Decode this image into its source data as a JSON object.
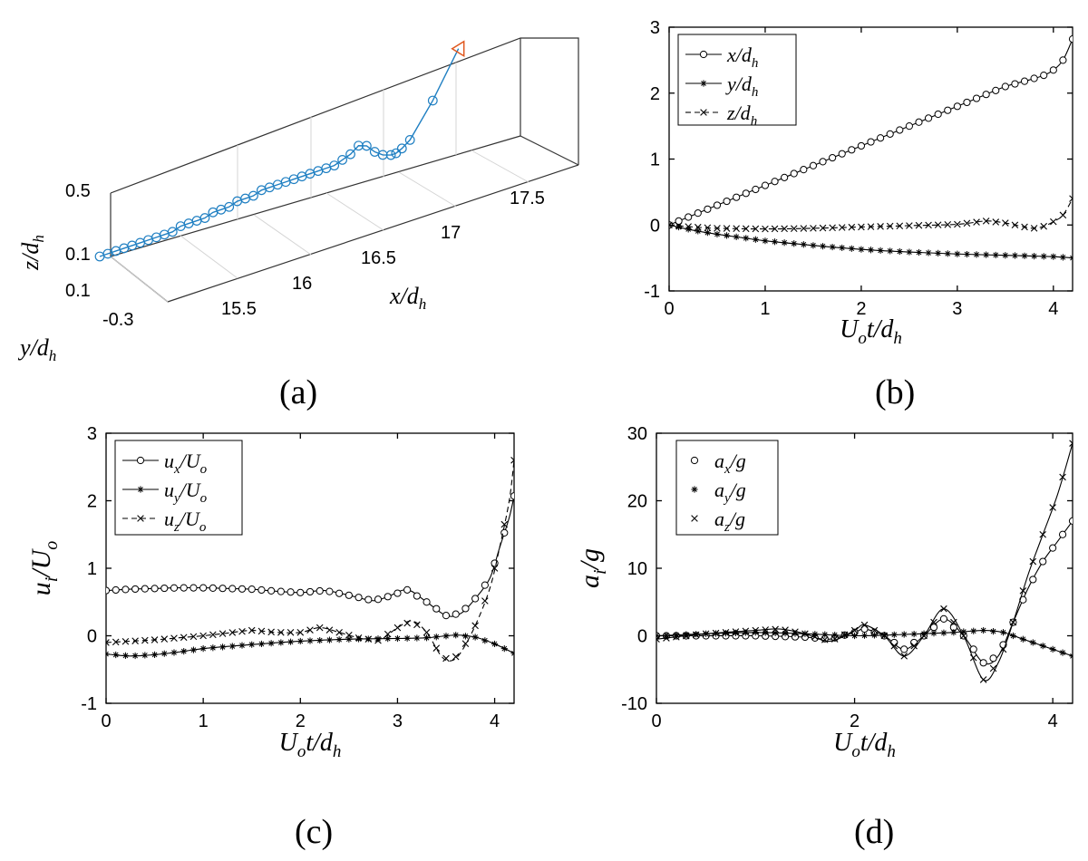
{
  "chart_data": [
    {
      "id": "a",
      "type": "line3d",
      "panel_label": "(a)",
      "xlabel": "x/d_h",
      "ylabel": "y/d_h",
      "zlabel": "z/d_h",
      "x_ticks": [
        "15.5",
        "16",
        "16.5",
        "17",
        "17.5"
      ],
      "y_ticks": [
        "0.1",
        "-0.3"
      ],
      "z_ticks": [
        "0.5",
        "0.1"
      ],
      "series_color": "#1f7fc2",
      "end_marker_color": "#e0581f",
      "trajectory": {
        "x": [
          15.32,
          15.38,
          15.44,
          15.5,
          15.56,
          15.62,
          15.68,
          15.74,
          15.8,
          15.86,
          15.92,
          15.98,
          16.04,
          16.1,
          16.16,
          16.22,
          16.28,
          16.34,
          16.4,
          16.46,
          16.52,
          16.58,
          16.64,
          16.7,
          16.76,
          16.82,
          16.88,
          16.94,
          17.0,
          17.06,
          17.12,
          17.18,
          17.24,
          17.3,
          17.36,
          17.42,
          17.48,
          17.52,
          17.56,
          17.62,
          17.78,
          17.96
        ],
        "y": [
          0.1,
          0.09,
          0.08,
          0.07,
          0.06,
          0.05,
          0.04,
          0.03,
          0.02,
          0.01,
          0.0,
          -0.01,
          -0.02,
          -0.03,
          -0.04,
          -0.05,
          -0.06,
          -0.07,
          -0.08,
          -0.09,
          -0.1,
          -0.11,
          -0.12,
          -0.13,
          -0.14,
          -0.15,
          -0.16,
          -0.17,
          -0.18,
          -0.19,
          -0.2,
          -0.21,
          -0.22,
          -0.23,
          -0.24,
          -0.25,
          -0.26,
          -0.27,
          -0.27,
          -0.28,
          -0.29,
          -0.3
        ],
        "z": [
          0.1,
          0.1,
          0.1,
          0.1,
          0.1,
          0.1,
          0.1,
          0.1,
          0.1,
          0.1,
          0.11,
          0.11,
          0.11,
          0.11,
          0.12,
          0.12,
          0.12,
          0.13,
          0.13,
          0.13,
          0.14,
          0.14,
          0.14,
          0.14,
          0.14,
          0.14,
          0.14,
          0.14,
          0.14,
          0.14,
          0.15,
          0.16,
          0.18,
          0.17,
          0.14,
          0.12,
          0.11,
          0.11,
          0.12,
          0.14,
          0.25,
          0.4
        ]
      }
    },
    {
      "id": "b",
      "type": "line",
      "panel_label": "(b)",
      "xlabel": "U_o t/d_h",
      "ylabel": "",
      "xlim": [
        0,
        4.2
      ],
      "ylim": [
        -1,
        3
      ],
      "x_ticks": [
        0,
        1,
        2,
        3,
        4
      ],
      "y_ticks": [
        -1,
        0,
        1,
        2,
        3
      ],
      "legend": {
        "position": "top-left"
      },
      "series": [
        {
          "name": "x/d_h",
          "marker": "o",
          "dash": "solid",
          "x": [
            0,
            0.25,
            0.5,
            0.75,
            1,
            1.25,
            1.5,
            1.75,
            2,
            2.25,
            2.5,
            2.75,
            3,
            3.25,
            3.5,
            3.75,
            3.9,
            4.0,
            4.1,
            4.2
          ],
          "y": [
            0,
            0.15,
            0.3,
            0.45,
            0.6,
            0.75,
            0.9,
            1.05,
            1.2,
            1.35,
            1.5,
            1.65,
            1.8,
            1.95,
            2.1,
            2.2,
            2.27,
            2.35,
            2.5,
            2.82
          ]
        },
        {
          "name": "y/d_h",
          "marker": "*",
          "dash": "solid",
          "x": [
            0,
            0.25,
            0.5,
            0.75,
            1,
            1.5,
            2,
            2.5,
            3,
            3.5,
            4,
            4.2
          ],
          "y": [
            0,
            -0.08,
            -0.14,
            -0.19,
            -0.24,
            -0.31,
            -0.37,
            -0.41,
            -0.44,
            -0.46,
            -0.48,
            -0.5
          ]
        },
        {
          "name": "z/d_h",
          "marker": "x",
          "dash": "dashed",
          "x": [
            0,
            0.25,
            0.5,
            1,
            1.5,
            2,
            2.5,
            3,
            3.3,
            3.5,
            3.7,
            3.8,
            3.9,
            4.0,
            4.1,
            4.2
          ],
          "y": [
            0,
            -0.03,
            -0.05,
            -0.06,
            -0.05,
            -0.03,
            -0.01,
            0.01,
            0.06,
            0.03,
            -0.03,
            -0.05,
            -0.02,
            0.05,
            0.15,
            0.4
          ]
        }
      ]
    },
    {
      "id": "c",
      "type": "line",
      "panel_label": "(c)",
      "xlabel": "U_o t/d_h",
      "ylabel": "u_i/U_o",
      "xlim": [
        0,
        4.2
      ],
      "ylim": [
        -1,
        3
      ],
      "x_ticks": [
        0,
        1,
        2,
        3,
        4
      ],
      "y_ticks": [
        -1,
        0,
        1,
        2,
        3
      ],
      "legend": {
        "position": "top-left"
      },
      "series": [
        {
          "name": "u_x/U_o",
          "marker": "o",
          "dash": "solid",
          "x": [
            0,
            0.25,
            0.5,
            0.75,
            1,
            1.25,
            1.5,
            1.75,
            2,
            2.25,
            2.5,
            2.75,
            2.9,
            3.1,
            3.3,
            3.5,
            3.65,
            3.8,
            3.95,
            4.05,
            4.15,
            4.2
          ],
          "y": [
            0.67,
            0.69,
            0.7,
            0.71,
            0.71,
            0.7,
            0.69,
            0.66,
            0.64,
            0.67,
            0.6,
            0.52,
            0.58,
            0.68,
            0.5,
            0.3,
            0.33,
            0.55,
            0.85,
            1.3,
            1.75,
            2.07
          ]
        },
        {
          "name": "u_y/U_o",
          "marker": "*",
          "dash": "solid",
          "x": [
            0,
            0.25,
            0.5,
            0.75,
            1,
            1.5,
            2,
            2.5,
            3,
            3.3,
            3.6,
            3.8,
            4.0,
            4.2
          ],
          "y": [
            -0.27,
            -0.3,
            -0.28,
            -0.24,
            -0.19,
            -0.13,
            -0.08,
            -0.05,
            -0.04,
            -0.03,
            0.01,
            -0.02,
            -0.12,
            -0.26
          ]
        },
        {
          "name": "u_z/U_o",
          "marker": "x",
          "dash": "dashed",
          "x": [
            0,
            0.25,
            0.5,
            0.75,
            1,
            1.25,
            1.5,
            1.75,
            2,
            2.2,
            2.4,
            2.6,
            2.8,
            3.0,
            3.15,
            3.3,
            3.45,
            3.55,
            3.65,
            3.8,
            3.95,
            4.05,
            4.15,
            4.2
          ],
          "y": [
            -0.1,
            -0.08,
            -0.06,
            -0.03,
            0.0,
            0.04,
            0.08,
            0.05,
            0.05,
            0.12,
            0.05,
            -0.03,
            -0.07,
            0.12,
            0.22,
            0.05,
            -0.3,
            -0.37,
            -0.25,
            0.15,
            0.7,
            1.3,
            2.0,
            2.6
          ]
        }
      ]
    },
    {
      "id": "d",
      "type": "line",
      "panel_label": "(d)",
      "xlabel": "U_o t/d_h",
      "ylabel": "a_i/g",
      "xlim": [
        0,
        4.2
      ],
      "ylim": [
        -10,
        30
      ],
      "x_ticks": [
        0,
        2,
        4
      ],
      "y_ticks": [
        -10,
        0,
        10,
        20,
        30
      ],
      "legend": {
        "position": "top-left"
      },
      "series": [
        {
          "name": "a_x/g",
          "marker": "o",
          "dash": "solid",
          "x": [
            0,
            0.5,
            1,
            1.5,
            1.75,
            2,
            2.1,
            2.3,
            2.5,
            2.7,
            2.9,
            3.1,
            3.3,
            3.45,
            3.6,
            3.75,
            3.9,
            4.05,
            4.2
          ],
          "y": [
            0,
            0,
            0,
            -0.2,
            -0.5,
            0.5,
            1.0,
            0,
            -2.0,
            0,
            2.5,
            0,
            -4.0,
            -3.0,
            2.0,
            7.0,
            11.0,
            14.0,
            17.0
          ]
        },
        {
          "name": "a_y/g",
          "marker": "*",
          "dash": "solid",
          "x": [
            0,
            0.5,
            1,
            1.5,
            2,
            2.5,
            3,
            3.3,
            3.5,
            3.7,
            3.9,
            4.2
          ],
          "y": [
            0,
            0.3,
            0.5,
            0.3,
            0,
            0.2,
            0.5,
            0.8,
            0.5,
            -0.5,
            -1.5,
            -3.0
          ]
        },
        {
          "name": "a_z/g",
          "marker": "x",
          "dash": "solid",
          "x": [
            0,
            0.5,
            1,
            1.25,
            1.5,
            1.75,
            2,
            2.1,
            2.3,
            2.5,
            2.7,
            2.9,
            3.1,
            3.3,
            3.45,
            3.6,
            3.75,
            3.9,
            4.05,
            4.2
          ],
          "y": [
            -0.5,
            0.3,
            0.8,
            1.0,
            0.3,
            -0.8,
            0.8,
            1.6,
            0,
            -3.0,
            0,
            4.0,
            0,
            -6.5,
            -4.0,
            2.0,
            9.0,
            15.0,
            21.0,
            28.5
          ]
        }
      ]
    }
  ]
}
